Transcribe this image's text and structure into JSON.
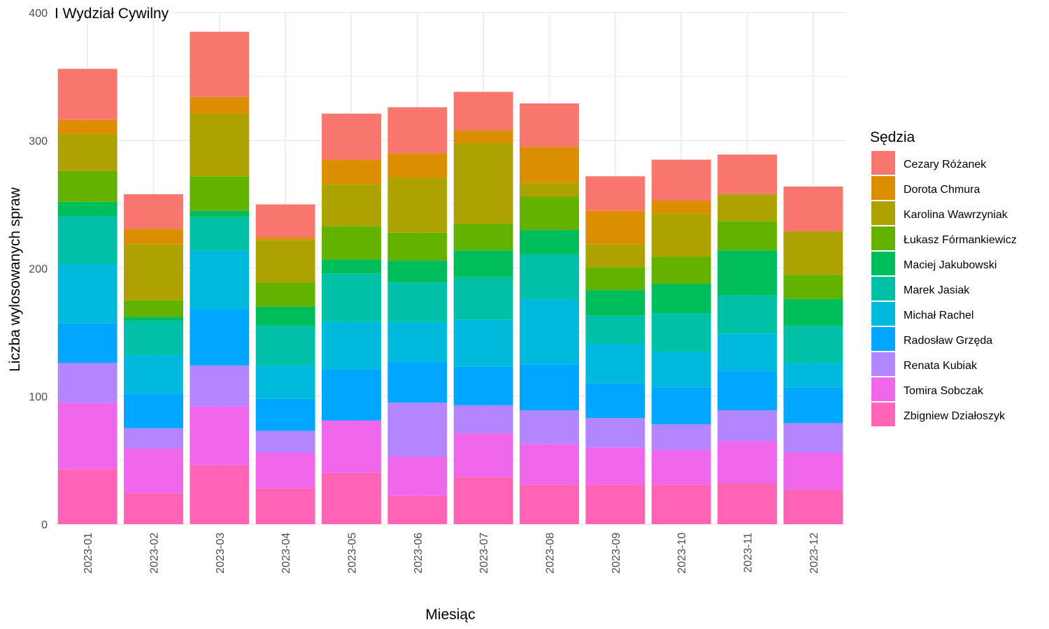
{
  "chart_data": {
    "type": "bar",
    "stacked": true,
    "title": "I Wydział Cywilny",
    "xlabel": "Miesiąc",
    "ylabel": "Liczba wylosowanych spraw",
    "ylim": [
      0,
      400
    ],
    "y_ticks": [
      0,
      100,
      200,
      300,
      400
    ],
    "grid": true,
    "legend_position": "right",
    "legend_title": "Sędzia",
    "categories": [
      "2023-01",
      "2023-02",
      "2023-03",
      "2023-04",
      "2023-05",
      "2023-06",
      "2023-07",
      "2023-08",
      "2023-09",
      "2023-10",
      "2023-11",
      "2023-12"
    ],
    "series": [
      {
        "name": "Cezary Różanek",
        "color": "#F8766D",
        "values": [
          40,
          27,
          51,
          26,
          36,
          36,
          30,
          34,
          27,
          32,
          31,
          35
        ]
      },
      {
        "name": "Dorota Chmura",
        "color": "#DB8E00",
        "values": [
          11,
          12,
          13,
          2,
          19,
          19,
          10,
          28,
          26,
          10,
          0,
          0
        ]
      },
      {
        "name": "Karolina Wawrzyniak",
        "color": "#AEA200",
        "values": [
          29,
          44,
          49,
          33,
          33,
          43,
          63,
          11,
          18,
          34,
          21,
          34
        ]
      },
      {
        "name": "Łukasz Fórmankiewicz",
        "color": "#64B200",
        "values": [
          24,
          13,
          27,
          19,
          26,
          22,
          21,
          26,
          18,
          21,
          23,
          19
        ]
      },
      {
        "name": "Maciej Jakubowski",
        "color": "#00BD5C",
        "values": [
          11,
          3,
          5,
          15,
          11,
          17,
          21,
          19,
          20,
          23,
          35,
          21
        ]
      },
      {
        "name": "Marek Jasiak",
        "color": "#00C1A7",
        "values": [
          38,
          27,
          26,
          31,
          38,
          31,
          33,
          35,
          22,
          30,
          30,
          29
        ]
      },
      {
        "name": "Michał Rachel",
        "color": "#00BADE",
        "values": [
          46,
          30,
          46,
          26,
          37,
          31,
          37,
          51,
          31,
          28,
          29,
          19
        ]
      },
      {
        "name": "Radosław Grzęda",
        "color": "#00A6FF",
        "values": [
          31,
          27,
          44,
          25,
          40,
          32,
          30,
          36,
          27,
          29,
          31,
          28
        ]
      },
      {
        "name": "Renata Kubiak",
        "color": "#B385FF",
        "values": [
          31,
          16,
          32,
          17,
          0,
          42,
          22,
          26,
          23,
          20,
          24,
          23
        ]
      },
      {
        "name": "Tomira Sobczak",
        "color": "#EF67EB",
        "values": [
          52,
          35,
          46,
          28,
          41,
          31,
          34,
          32,
          29,
          27,
          33,
          29
        ]
      },
      {
        "name": "Zbigniew Działoszyk",
        "color": "#FF63B6",
        "values": [
          43,
          24,
          46,
          28,
          40,
          22,
          37,
          31,
          31,
          31,
          32,
          27
        ]
      }
    ]
  }
}
